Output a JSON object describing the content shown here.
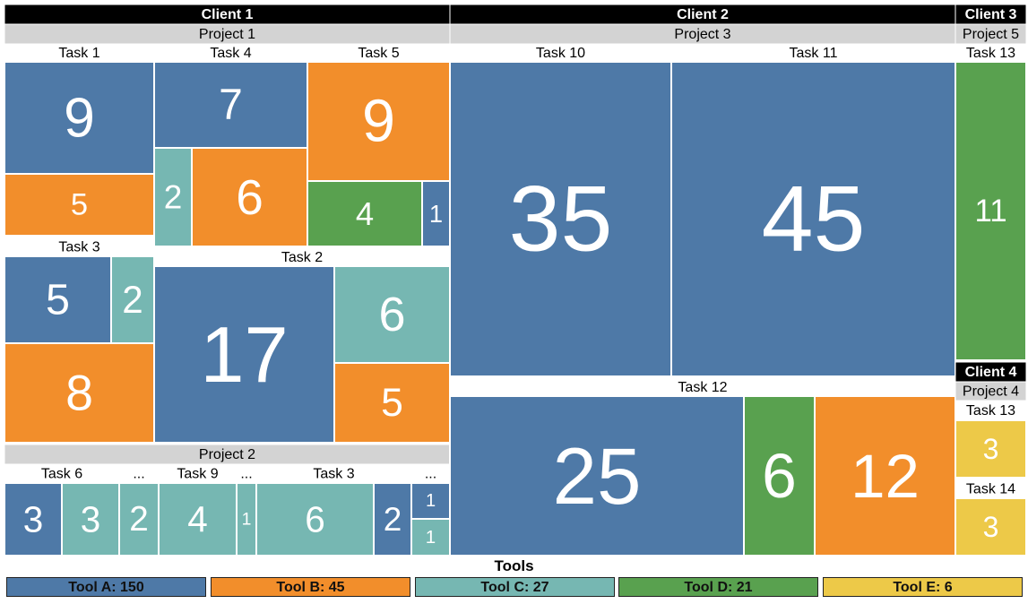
{
  "chart_data": {
    "type": "treemap",
    "legend_title": "Tools",
    "tools": [
      {
        "name": "Tool A",
        "label": "Tool A: 150",
        "total": 150,
        "color": "#4e79a7"
      },
      {
        "name": "Tool B",
        "label": "Tool B: 45",
        "total": 45,
        "color": "#f28e2b"
      },
      {
        "name": "Tool C",
        "label": "Tool C: 27",
        "total": 27,
        "color": "#76b7b2"
      },
      {
        "name": "Tool D",
        "label": "Tool D: 21",
        "total": 21,
        "color": "#59a14f"
      },
      {
        "name": "Tool E",
        "label": "Tool E: 6",
        "total": 6,
        "color": "#edc948"
      }
    ],
    "clients": [
      {
        "name": "Client 1",
        "projects": [
          {
            "name": "Project 1",
            "tasks": [
              {
                "name": "Task 1",
                "values": [
                  {
                    "tool": "Tool A",
                    "value": 9
                  },
                  {
                    "tool": "Tool B",
                    "value": 5
                  }
                ]
              },
              {
                "name": "Task 4",
                "values": [
                  {
                    "tool": "Tool A",
                    "value": 7
                  },
                  {
                    "tool": "Tool C",
                    "value": 2
                  },
                  {
                    "tool": "Tool B",
                    "value": 6
                  }
                ]
              },
              {
                "name": "Task 5",
                "values": [
                  {
                    "tool": "Tool B",
                    "value": 9
                  },
                  {
                    "tool": "Tool D",
                    "value": 4
                  },
                  {
                    "tool": "Tool A",
                    "value": 1
                  }
                ]
              },
              {
                "name": "Task 3",
                "values": [
                  {
                    "tool": "Tool A",
                    "value": 5
                  },
                  {
                    "tool": "Tool C",
                    "value": 2
                  },
                  {
                    "tool": "Tool B",
                    "value": 8
                  }
                ]
              },
              {
                "name": "Task 2",
                "values": [
                  {
                    "tool": "Tool A",
                    "value": 17
                  },
                  {
                    "tool": "Tool C",
                    "value": 6
                  },
                  {
                    "tool": "Tool B",
                    "value": 5
                  }
                ]
              }
            ]
          },
          {
            "name": "Project 2",
            "tasks": [
              {
                "name": "Task 6",
                "values": [
                  {
                    "tool": "Tool A",
                    "value": 3
                  },
                  {
                    "tool": "Tool C",
                    "value": 3
                  }
                ]
              },
              {
                "name": "...",
                "values": [
                  {
                    "tool": "Tool C",
                    "value": 2
                  }
                ]
              },
              {
                "name": "Task 9",
                "values": [
                  {
                    "tool": "Tool C",
                    "value": 4
                  }
                ]
              },
              {
                "name": "...",
                "values": [
                  {
                    "tool": "Tool C",
                    "value": 1
                  }
                ]
              },
              {
                "name": "Task 3",
                "values": [
                  {
                    "tool": "Tool C",
                    "value": 6
                  },
                  {
                    "tool": "Tool A",
                    "value": 2
                  }
                ]
              },
              {
                "name": "...",
                "values": [
                  {
                    "tool": "Tool A",
                    "value": 1
                  },
                  {
                    "tool": "Tool C",
                    "value": 1
                  }
                ]
              }
            ]
          }
        ]
      },
      {
        "name": "Client 2",
        "projects": [
          {
            "name": "Project 3",
            "tasks": [
              {
                "name": "Task 10",
                "values": [
                  {
                    "tool": "Tool A",
                    "value": 35
                  }
                ]
              },
              {
                "name": "Task 11",
                "values": [
                  {
                    "tool": "Tool A",
                    "value": 45
                  }
                ]
              },
              {
                "name": "Task 12",
                "values": [
                  {
                    "tool": "Tool A",
                    "value": 25
                  },
                  {
                    "tool": "Tool D",
                    "value": 6
                  },
                  {
                    "tool": "Tool B",
                    "value": 12
                  }
                ]
              }
            ]
          }
        ]
      },
      {
        "name": "Client 3",
        "projects": [
          {
            "name": "Project 5",
            "tasks": [
              {
                "name": "Task 13",
                "values": [
                  {
                    "tool": "Tool D",
                    "value": 11
                  }
                ]
              }
            ]
          }
        ]
      },
      {
        "name": "Client 4",
        "projects": [
          {
            "name": "Project 4",
            "tasks": [
              {
                "name": "Task 13",
                "values": [
                  {
                    "tool": "Tool E",
                    "value": 3
                  }
                ]
              },
              {
                "name": "Task 14",
                "values": [
                  {
                    "tool": "Tool E",
                    "value": 3
                  }
                ]
              }
            ]
          }
        ]
      }
    ]
  }
}
